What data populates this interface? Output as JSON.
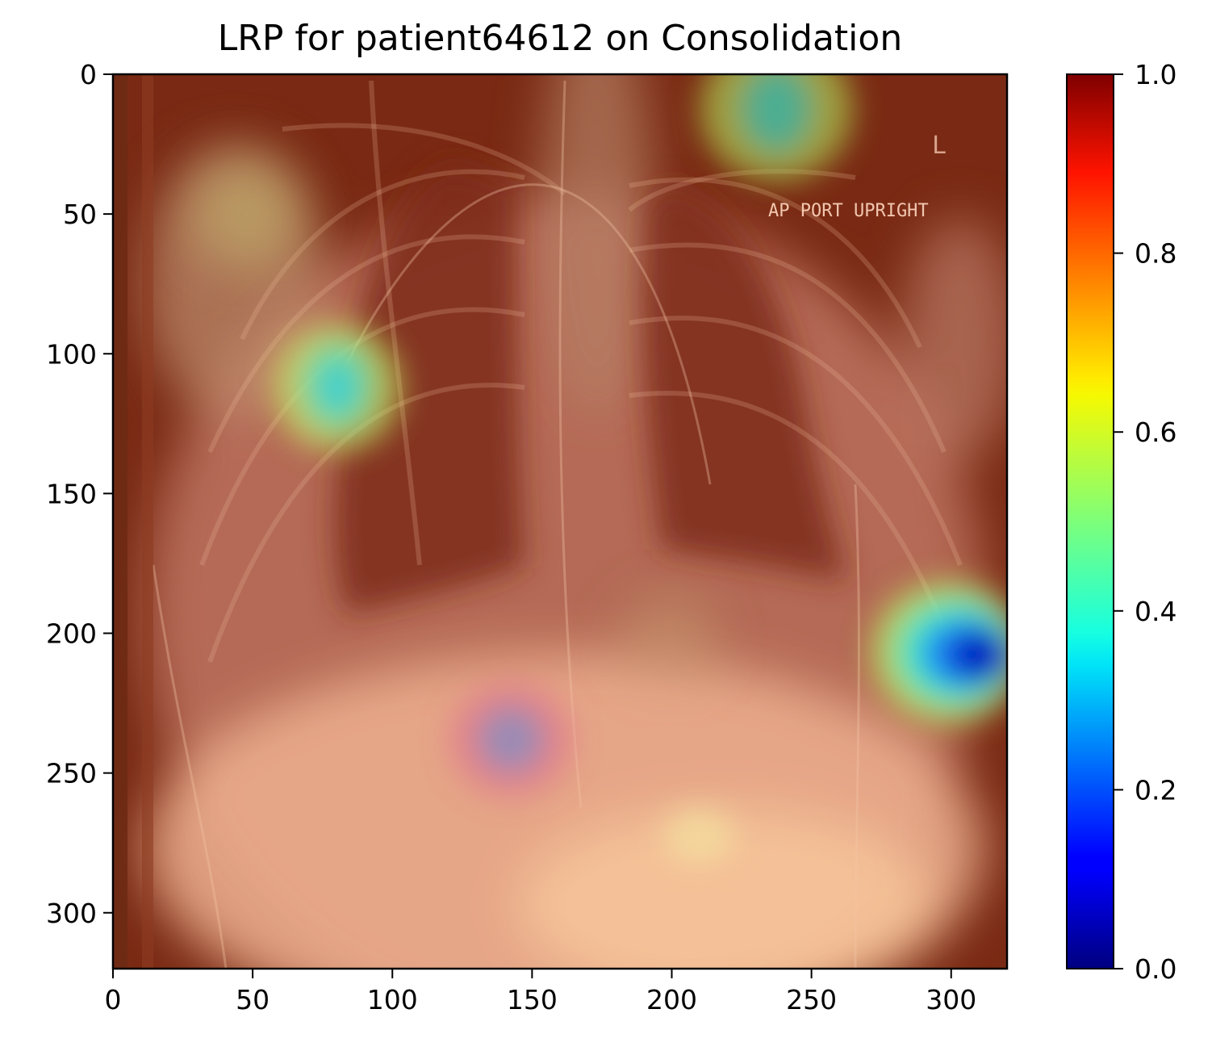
{
  "chart_data": {
    "type": "heatmap",
    "title": "LRP for patient64612 on Consolidation",
    "xlabel": "",
    "ylabel": "",
    "xlim": [
      0,
      320
    ],
    "ylim": [
      320,
      0
    ],
    "x_ticks": [
      0,
      50,
      100,
      150,
      200,
      250,
      300
    ],
    "y_ticks": [
      0,
      50,
      100,
      150,
      200,
      250,
      300
    ],
    "colorbar": {
      "colormap": "jet",
      "range": [
        0,
        1
      ],
      "ticks": [
        "0.0",
        "0.2",
        "0.4",
        "0.6",
        "0.8",
        "1.0"
      ]
    },
    "background_image": "chest x-ray, frontal view",
    "image_text": "AP PORT UPRIGHT",
    "relevance_minima": [
      {
        "x": 80,
        "y": 112,
        "value": 0.35
      },
      {
        "x": 238,
        "y": 12,
        "value": 0.4
      },
      {
        "x": 310,
        "y": 207,
        "value": 0.05
      },
      {
        "x": 142,
        "y": 238,
        "value": 0.3
      },
      {
        "x": 210,
        "y": 272,
        "value": 0.75
      },
      {
        "x": 48,
        "y": 50,
        "value": 0.7
      }
    ],
    "grid": false
  }
}
